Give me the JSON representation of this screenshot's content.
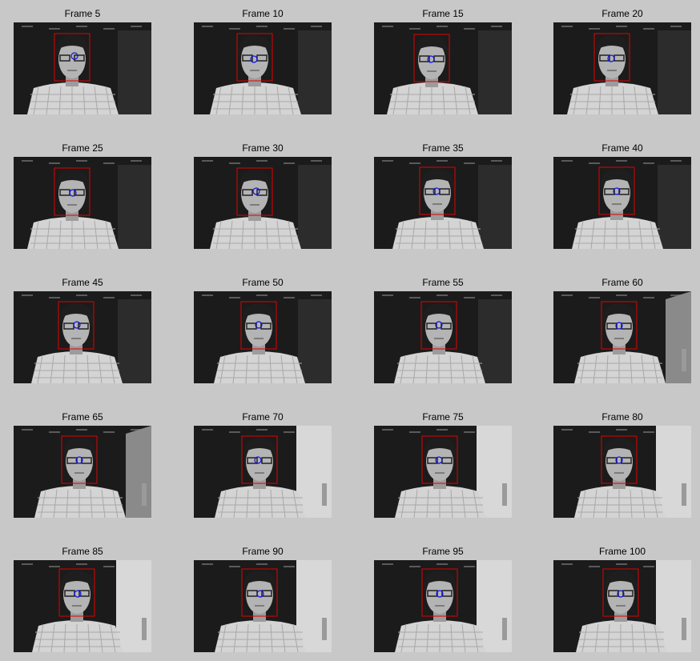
{
  "colors": {
    "figure_background": "#c8c8c8",
    "bounding_box": "#e00000",
    "tracked_point": "#1010e0"
  },
  "frames": [
    {
      "title": "Frame 5"
    },
    {
      "title": "Frame 10"
    },
    {
      "title": "Frame 15"
    },
    {
      "title": "Frame 20"
    },
    {
      "title": "Frame 25"
    },
    {
      "title": "Frame 30"
    },
    {
      "title": "Frame 35"
    },
    {
      "title": "Frame 40"
    },
    {
      "title": "Frame 45"
    },
    {
      "title": "Frame 50"
    },
    {
      "title": "Frame 55"
    },
    {
      "title": "Frame 60"
    },
    {
      "title": "Frame 65"
    },
    {
      "title": "Frame 70"
    },
    {
      "title": "Frame 75"
    },
    {
      "title": "Frame 80"
    },
    {
      "title": "Frame 85"
    },
    {
      "title": "Frame 90"
    },
    {
      "title": "Frame 95"
    },
    {
      "title": "Frame 100"
    }
  ]
}
